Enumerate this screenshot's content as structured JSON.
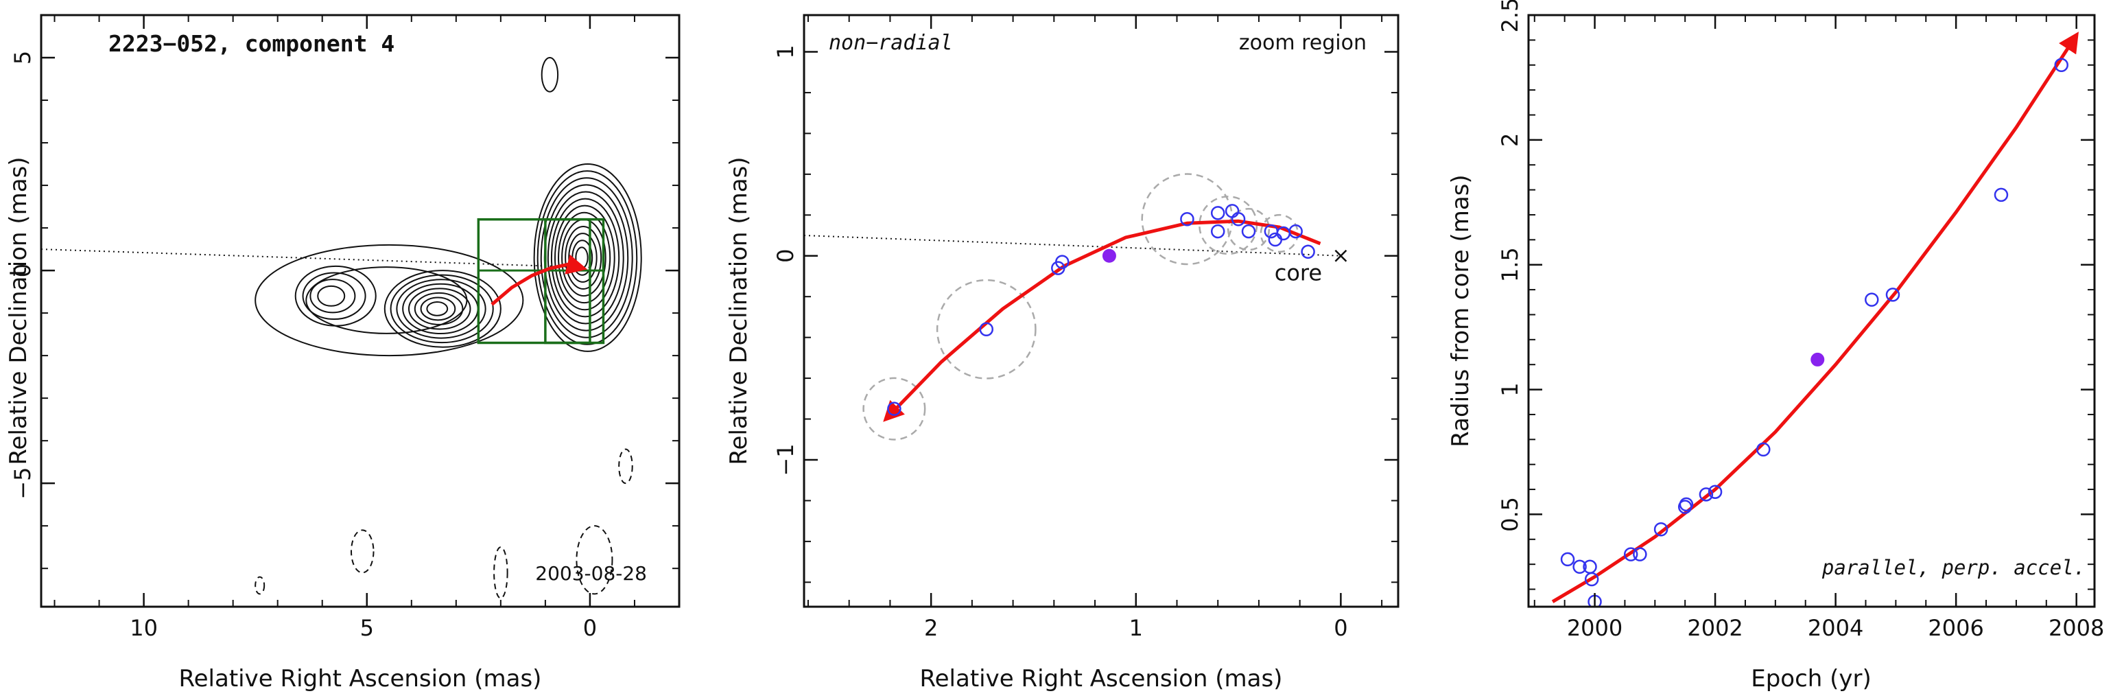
{
  "chart_data": [
    {
      "type": "contour",
      "title": "2223−052, component 4",
      "xlabel": "Relative Right Ascension (mas)",
      "ylabel": "Relative Declination (mas)",
      "xlim": [
        12.3,
        -2.0
      ],
      "ylim": [
        -7.9,
        6.0
      ],
      "xticks": [
        10,
        5,
        0
      ],
      "yticks": [
        5,
        0,
        -5
      ],
      "xtick_labels": [
        "10",
        "5",
        "0"
      ],
      "ytick_labels": [
        "5",
        "0",
        "−5"
      ],
      "annotation": "2003-08-28",
      "jet_axis_line": [
        [
          12.3,
          0.5
        ],
        [
          0.0,
          0.07
        ]
      ],
      "zoom_boxes": [
        {
          "x": [
            2.5,
            0.0
          ],
          "y": [
            -1.7,
            1.2
          ]
        },
        {
          "x": [
            1.0,
            -0.3
          ],
          "y": [
            -1.7,
            1.2
          ]
        },
        {
          "x": [
            2.5,
            -0.3
          ],
          "y": [
            0.0,
            0.0
          ]
        }
      ],
      "trajectory": [
        [
          2.2,
          -0.8
        ],
        [
          1.75,
          -0.4
        ],
        [
          1.3,
          -0.12
        ],
        [
          0.9,
          0.05
        ],
        [
          0.5,
          0.14
        ],
        [
          0.15,
          0.05
        ]
      ],
      "emission_components": [
        {
          "x": 0.05,
          "y": 0.3,
          "rx": 1.2,
          "ry": 2.2,
          "levels": 13
        },
        {
          "x": 3.3,
          "y": -0.9,
          "rx": 1.3,
          "ry": 0.9,
          "levels": 8
        },
        {
          "x": 5.7,
          "y": -0.6,
          "rx": 0.9,
          "ry": 0.7,
          "levels": 4
        },
        {
          "x": 4.5,
          "y": -0.7,
          "rx": 3.0,
          "ry": 1.3,
          "levels": 2
        }
      ],
      "negative_contours": [
        {
          "x": -0.8,
          "y": -4.6,
          "rx": 0.15,
          "ry": 0.4
        },
        {
          "x": 5.1,
          "y": -6.6,
          "rx": 0.25,
          "ry": 0.5
        },
        {
          "x": 7.4,
          "y": -7.4,
          "rx": 0.1,
          "ry": 0.2
        },
        {
          "x": 2.0,
          "y": -7.1,
          "rx": 0.15,
          "ry": 0.6
        },
        {
          "x": -0.1,
          "y": -6.8,
          "rx": 0.4,
          "ry": 0.8
        }
      ],
      "positive_small_contours": [
        {
          "x": 0.9,
          "y": 4.6,
          "rx": 0.18,
          "ry": 0.4
        }
      ]
    },
    {
      "type": "scatter",
      "title_left": "non−radial",
      "title_right": "zoom region",
      "xlabel": "Relative Right Ascension (mas)",
      "ylabel": "Relative Declination (mas)",
      "xlim": [
        2.62,
        -0.28
      ],
      "ylim": [
        -1.72,
        1.18
      ],
      "xticks": [
        2,
        1,
        0
      ],
      "yticks": [
        1,
        0,
        -1
      ],
      "xtick_labels": [
        "2",
        "1",
        "0"
      ],
      "ytick_labels": [
        "1",
        "0",
        "−1"
      ],
      "core_label": "core",
      "core_marker": {
        "x": 0.0,
        "y": 0.0
      },
      "reference_line": [
        [
          2.62,
          0.1
        ],
        [
          0.0,
          0.0
        ]
      ],
      "points": [
        {
          "x": 2.18,
          "y": -0.75
        },
        {
          "x": 1.73,
          "y": -0.36
        },
        {
          "x": 1.38,
          "y": -0.06
        },
        {
          "x": 1.36,
          "y": -0.03
        },
        {
          "x": 0.75,
          "y": 0.18
        },
        {
          "x": 0.6,
          "y": 0.21
        },
        {
          "x": 0.6,
          "y": 0.12
        },
        {
          "x": 0.53,
          "y": 0.22
        },
        {
          "x": 0.5,
          "y": 0.18
        },
        {
          "x": 0.45,
          "y": 0.12
        },
        {
          "x": 0.34,
          "y": 0.12
        },
        {
          "x": 0.28,
          "y": 0.11
        },
        {
          "x": 0.32,
          "y": 0.08
        },
        {
          "x": 0.22,
          "y": 0.12
        },
        {
          "x": 0.16,
          "y": 0.02
        }
      ],
      "highlight_point": {
        "x": 1.13,
        "y": 0.0
      },
      "uncertainty_circles": [
        {
          "x": 2.18,
          "y": -0.75,
          "r": 0.15
        },
        {
          "x": 1.73,
          "y": -0.36,
          "r": 0.24
        },
        {
          "x": 0.75,
          "y": 0.18,
          "r": 0.22
        },
        {
          "x": 0.55,
          "y": 0.15,
          "r": 0.14
        },
        {
          "x": 0.45,
          "y": 0.13,
          "r": 0.1
        },
        {
          "x": 0.3,
          "y": 0.11,
          "r": 0.09
        }
      ],
      "fit_curve": [
        [
          2.22,
          -0.8
        ],
        [
          1.95,
          -0.52
        ],
        [
          1.65,
          -0.26
        ],
        [
          1.35,
          -0.05
        ],
        [
          1.05,
          0.09
        ],
        [
          0.75,
          0.16
        ],
        [
          0.5,
          0.17
        ],
        [
          0.3,
          0.14
        ],
        [
          0.1,
          0.06
        ]
      ]
    },
    {
      "type": "scatter",
      "xlabel": "Epoch (yr)",
      "ylabel": "Radius from core (mas)",
      "annotation": "parallel, perp. accel.",
      "xlim": [
        1998.9,
        2008.3
      ],
      "ylim": [
        0.13,
        2.5
      ],
      "xticks": [
        2000,
        2002,
        2004,
        2006,
        2008
      ],
      "yticks": [
        0.5,
        1,
        1.5,
        2,
        2.5
      ],
      "xtick_labels": [
        "2000",
        "2002",
        "2004",
        "2006",
        "2008"
      ],
      "ytick_labels": [
        "0.5",
        "1",
        "1.5",
        "2",
        "2.5"
      ],
      "points": [
        {
          "x": 1999.55,
          "y": 0.32
        },
        {
          "x": 1999.75,
          "y": 0.29
        },
        {
          "x": 1999.92,
          "y": 0.29
        },
        {
          "x": 1999.95,
          "y": 0.24
        },
        {
          "x": 2000.0,
          "y": 0.15
        },
        {
          "x": 2000.6,
          "y": 0.34
        },
        {
          "x": 2000.75,
          "y": 0.34
        },
        {
          "x": 2001.1,
          "y": 0.44
        },
        {
          "x": 2001.5,
          "y": 0.53
        },
        {
          "x": 2001.52,
          "y": 0.54
        },
        {
          "x": 2001.85,
          "y": 0.58
        },
        {
          "x": 2002.0,
          "y": 0.59
        },
        {
          "x": 2002.8,
          "y": 0.76
        },
        {
          "x": 2004.6,
          "y": 1.36
        },
        {
          "x": 2004.95,
          "y": 1.38
        },
        {
          "x": 2006.75,
          "y": 1.78
        },
        {
          "x": 2007.75,
          "y": 2.3
        }
      ],
      "highlight_point": {
        "x": 2003.7,
        "y": 1.12
      },
      "fit_curve": [
        [
          1999.3,
          0.15
        ],
        [
          2000.0,
          0.25
        ],
        [
          2001.0,
          0.41
        ],
        [
          2002.0,
          0.6
        ],
        [
          2003.0,
          0.83
        ],
        [
          2004.0,
          1.1
        ],
        [
          2005.0,
          1.39
        ],
        [
          2006.0,
          1.71
        ],
        [
          2007.0,
          2.05
        ],
        [
          2008.0,
          2.42
        ]
      ]
    }
  ],
  "colors": {
    "axis": "#111111",
    "contour": "#111111",
    "open_point": "#3333ee",
    "highlight_point": "#8822ee",
    "fit": "#ee1111",
    "box": "#1a6e1a",
    "uncertainty": "#aaaaaa"
  }
}
